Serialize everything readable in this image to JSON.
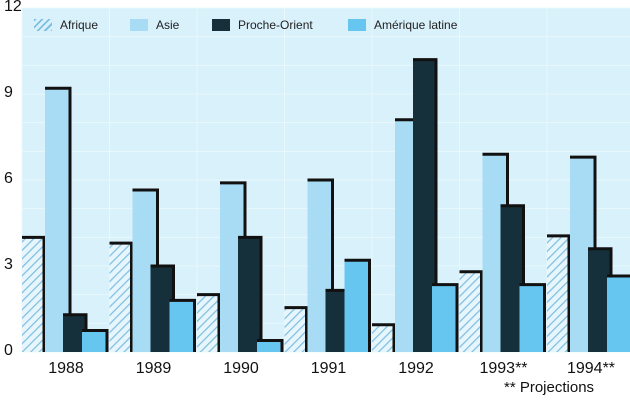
{
  "chart_data": {
    "type": "bar",
    "categories": [
      "1988",
      "1989",
      "1990",
      "1991",
      "1992",
      "1993**",
      "1994**"
    ],
    "series": [
      {
        "name": "Afrique",
        "values": [
          4.0,
          3.8,
          2.0,
          1.55,
          0.95,
          2.8,
          4.05
        ],
        "color": "#a9d8f0",
        "pattern": "hatch"
      },
      {
        "name": "Asie",
        "values": [
          9.2,
          5.65,
          5.9,
          6.0,
          8.1,
          6.9,
          6.8
        ],
        "color": "#a8dcf4"
      },
      {
        "name": "Proche-Orient",
        "values": [
          1.3,
          3.0,
          4.0,
          2.15,
          10.2,
          5.1,
          3.6
        ],
        "color": "#15303a"
      },
      {
        "name": "Amérique latine",
        "values": [
          0.75,
          1.8,
          0.4,
          3.2,
          2.35,
          2.35,
          2.65
        ],
        "color": "#66c6f0"
      }
    ],
    "yticks": [
      "0",
      "3",
      "6",
      "9",
      "12"
    ],
    "ylim": [
      0,
      12
    ],
    "grid": true,
    "legend": "top",
    "annotation": "** Projections",
    "background": "#d9f1fb"
  }
}
